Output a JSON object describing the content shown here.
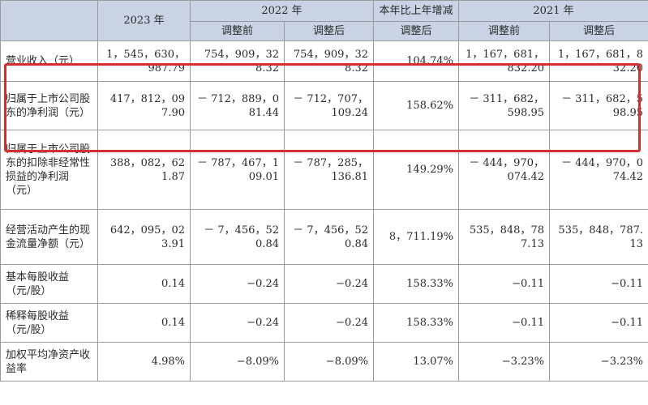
{
  "table": {
    "header": {
      "y2023": "2023 年",
      "y2022": "2022 年",
      "yoy": "本年比上年增减",
      "y2021": "2021 年",
      "before": "调整前",
      "after": "调整后"
    },
    "rows": [
      {
        "label": "营业收入（元）",
        "v2023": "1，545，630，987.79",
        "v2022_before": "754，909，328.32",
        "v2022_after": "754，909，328.32",
        "yoy": "104.74%",
        "v2021_before": "1，167，681，832.20",
        "v2021_after": "1，167，681，832.20"
      },
      {
        "label": "归属于上市公司股东的净利润（元）",
        "v2023": "417，812，097.90",
        "v2022_before": "－ 712，889，081.44",
        "v2022_after": "－ 712，707，109.24",
        "yoy": "158.62%",
        "v2021_before": "－ 311，682，598.95",
        "v2021_after": "－ 311，682，598.95"
      },
      {
        "label": "归属于上市公司股东的扣除非经常性损益的净利润（元）",
        "v2023": "388，082，621.87",
        "v2022_before": "－ 787，467，109.01",
        "v2022_after": "－ 787，285，136.81",
        "yoy": "149.29%",
        "v2021_before": "－ 444，970，074.42",
        "v2021_after": "－ 444，970，074.42"
      },
      {
        "label": "经营活动产生的现金流量净额（元）",
        "v2023": "642，095，023.91",
        "v2022_before": "－ 7，456，520.84",
        "v2022_after": "－ 7，456，520.84",
        "yoy": "8，711.19%",
        "v2021_before": "535，848，787.13",
        "v2021_after": "535，848，787.13"
      },
      {
        "label": "基本每股收益（元/股）",
        "v2023": "0.14",
        "v2022_before": "−0.24",
        "v2022_after": "−0.24",
        "yoy": "158.33%",
        "v2021_before": "−0.11",
        "v2021_after": "−0.11"
      },
      {
        "label": "稀释每股收益（元/股）",
        "v2023": "0.14",
        "v2022_before": "−0.24",
        "v2022_after": "−0.24",
        "yoy": "158.33%",
        "v2021_before": "−0.11",
        "v2021_after": "−0.11"
      },
      {
        "label": "加权平均净资产收益率",
        "v2023": "4.98%",
        "v2022_before": "−8.09%",
        "v2022_after": "−8.09%",
        "yoy": "13.07%",
        "v2021_before": "−3.23%",
        "v2021_after": "−3.23%"
      }
    ]
  },
  "highlight_color": "#d32f2f",
  "header_color": "#c9d3e4"
}
